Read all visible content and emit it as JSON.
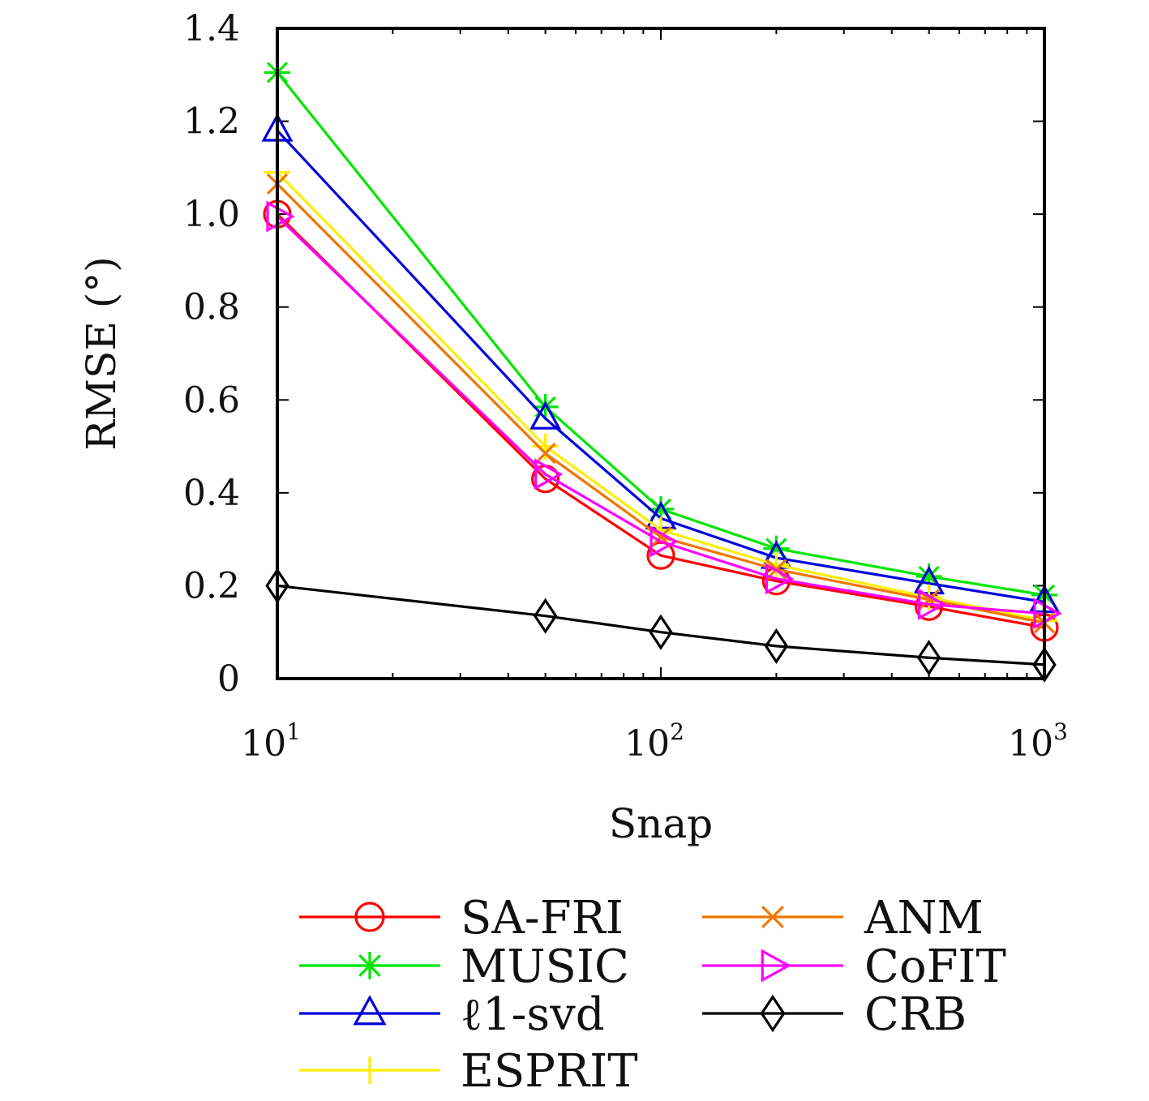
{
  "chart_data": {
    "type": "line",
    "xlabel": "Snap",
    "ylabel": "RMSE (°)",
    "xscale": "log",
    "xlim": [
      10,
      1000
    ],
    "ylim": [
      0,
      1.4
    ],
    "yticks": [
      "0",
      "0.2",
      "0.4",
      "0.6",
      "0.8",
      "1.0",
      "1.2",
      "1.4"
    ],
    "xticks": [
      {
        "base": "10",
        "exp": "1"
      },
      {
        "base": "10",
        "exp": "2"
      },
      {
        "base": "10",
        "exp": "3"
      }
    ],
    "x": [
      10,
      50,
      100,
      200,
      500,
      1000
    ],
    "legend_position": "bottom",
    "series": [
      {
        "name": "SA-FRI",
        "color": "#ff0000",
        "marker": "circle",
        "values": [
          1.0,
          0.43,
          0.265,
          0.21,
          0.155,
          0.11
        ]
      },
      {
        "name": "MUSIC",
        "color": "#00e600",
        "marker": "asterisk",
        "values": [
          1.305,
          0.585,
          0.365,
          0.28,
          0.22,
          0.18
        ]
      },
      {
        "name": "ℓ1-svd",
        "color": "#0000dd",
        "marker": "triangle",
        "values": [
          1.18,
          0.56,
          0.345,
          0.26,
          0.205,
          0.165
        ]
      },
      {
        "name": "ESPRIT",
        "color": "#ffee00",
        "marker": "plus",
        "values": [
          1.09,
          0.5,
          0.32,
          0.245,
          0.175,
          0.125
        ]
      },
      {
        "name": "ANM",
        "color": "#ee7700",
        "marker": "x",
        "values": [
          1.065,
          0.485,
          0.305,
          0.235,
          0.17,
          0.12
        ]
      },
      {
        "name": "CoFIT",
        "color": "#ff00ff",
        "marker": "triangle-right",
        "values": [
          0.995,
          0.44,
          0.295,
          0.215,
          0.16,
          0.14
        ]
      },
      {
        "name": "CRB",
        "color": "#000000",
        "marker": "diamond",
        "values": [
          0.2,
          0.135,
          0.1,
          0.07,
          0.045,
          0.03
        ]
      }
    ]
  },
  "legend": {
    "items": [
      {
        "name": "SA-FRI",
        "color": "#ff0000",
        "marker": "circle"
      },
      {
        "name": "ANM",
        "color": "#ee7700",
        "marker": "x"
      },
      {
        "name": "MUSIC",
        "color": "#00e600",
        "marker": "asterisk"
      },
      {
        "name": "CoFIT",
        "color": "#ff00ff",
        "marker": "triangle-right"
      },
      {
        "name": "ℓ1-svd",
        "color": "#0000dd",
        "marker": "triangle"
      },
      {
        "name": "CRB",
        "color": "#000000",
        "marker": "diamond"
      },
      {
        "name": "ESPRIT",
        "color": "#ffee00",
        "marker": "plus"
      }
    ]
  }
}
